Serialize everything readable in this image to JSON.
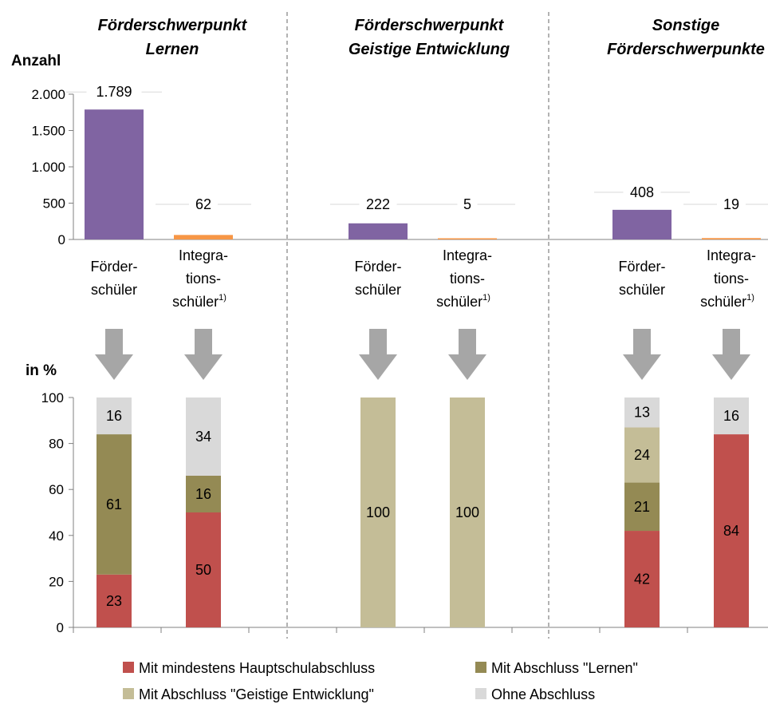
{
  "chart_data": [
    {
      "type": "bar",
      "sections": [
        "Förderschwerpunkt Lernen",
        "Förderschwerpunkt Geistige Entwicklung",
        "Sonstige Förderschwerpunkte"
      ],
      "section_lines": [
        [
          "Förderschwerpunkt",
          "Lernen"
        ],
        [
          "Förderschwerpunkt",
          "Geistige Entwicklung"
        ],
        [
          "Sonstige",
          "Förderschwerpunkte"
        ]
      ],
      "ylabel": "Anzahl",
      "ylim": [
        0,
        2000
      ],
      "yticks": [
        0,
        500,
        1000,
        1500,
        2000
      ],
      "ytick_labels": [
        "0",
        "500",
        "1.000",
        "1.500",
        "2.000"
      ],
      "bars": [
        {
          "section": 0,
          "group": "Förderschüler",
          "value": 1789,
          "label": "1.789",
          "color": "#8064a2"
        },
        {
          "section": 0,
          "group": "Integrationsschüler",
          "value": 62,
          "label": "62",
          "color": "#f79646"
        },
        {
          "section": 1,
          "group": "Förderschüler",
          "value": 222,
          "label": "222",
          "color": "#8064a2"
        },
        {
          "section": 1,
          "group": "Integrationsschüler",
          "value": 5,
          "label": "5",
          "color": "#f79646"
        },
        {
          "section": 2,
          "group": "Förderschüler",
          "value": 408,
          "label": "408",
          "color": "#8064a2"
        },
        {
          "section": 2,
          "group": "Integrationsschüler",
          "value": 19,
          "label": "19",
          "color": "#f79646"
        }
      ],
      "category_labels": [
        {
          "lines": [
            "Förder-",
            "schüler"
          ],
          "sup": ""
        },
        {
          "lines": [
            "Integra-",
            "tions-",
            "schüler"
          ],
          "sup": "1)"
        }
      ]
    },
    {
      "type": "bar",
      "stacked": true,
      "ylabel": "in %",
      "ylim": [
        0,
        100
      ],
      "yticks": [
        0,
        20,
        40,
        60,
        80,
        100
      ],
      "ytick_labels": [
        "0",
        "20",
        "40",
        "60",
        "80",
        "100"
      ],
      "series": [
        {
          "name": "Mit mindestens Hauptschulabschluss",
          "color": "#c0504d"
        },
        {
          "name": "Mit Abschluss \"Lernen\"",
          "color": "#948a54"
        },
        {
          "name": "Mit Abschluss \"Geistige Entwicklung\"",
          "color": "#c4bd97"
        },
        {
          "name": "Ohne Abschluss",
          "color": "#d9d9d9"
        }
      ],
      "columns": [
        {
          "section": 0,
          "group": "Förderschüler",
          "values": [
            23,
            61,
            0,
            16
          ]
        },
        {
          "section": 0,
          "group": "Integrationsschüler",
          "values": [
            50,
            16,
            0,
            34
          ]
        },
        {
          "section": 1,
          "group": "Förderschüler",
          "values": [
            0,
            0,
            100,
            0
          ]
        },
        {
          "section": 1,
          "group": "Integrationsschüler",
          "values": [
            0,
            0,
            100,
            0
          ]
        },
        {
          "section": 2,
          "group": "Förderschüler",
          "values": [
            42,
            21,
            24,
            13
          ]
        },
        {
          "section": 2,
          "group": "Integrationsschüler",
          "values": [
            84,
            0,
            0,
            16
          ]
        }
      ],
      "legend": "bottom",
      "grid": false
    }
  ],
  "colors": {
    "arrow": "#a6a6a6",
    "divider": "#808080",
    "axis": "#808080"
  }
}
